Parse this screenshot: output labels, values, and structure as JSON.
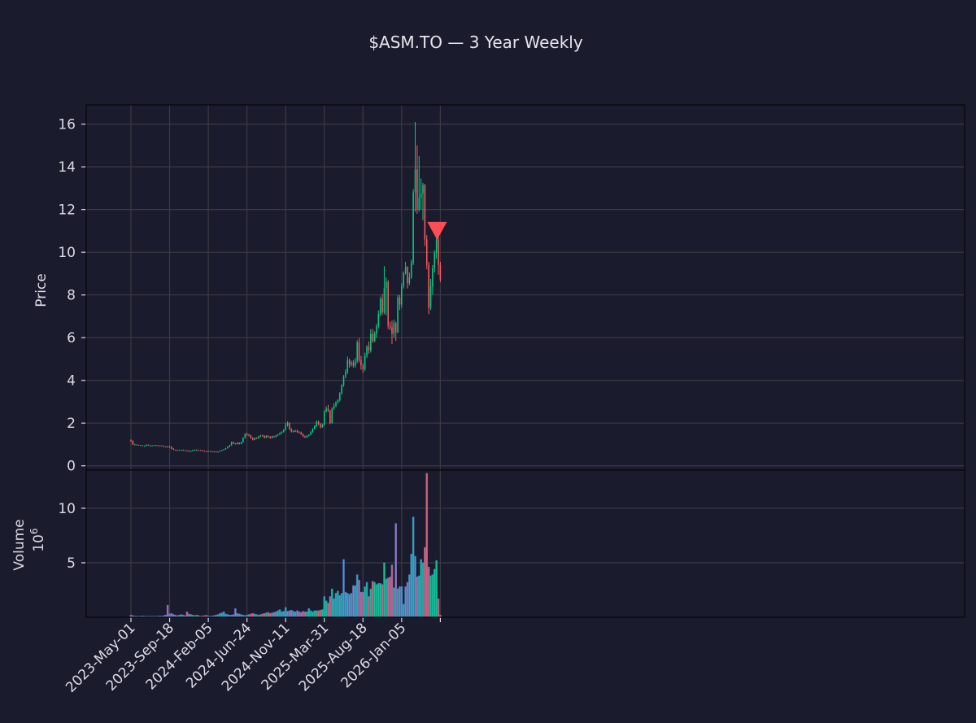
{
  "chart_data": {
    "type": "candlestick",
    "title": "$ASM.TO — 3 Year Weekly",
    "ylabel_price": "Price",
    "ylabel_volume": "Volume",
    "volume_scale_label": "10",
    "volume_scale_exp": "6",
    "x_tick_labels": [
      "2023-May-01",
      "2023-Sep-18",
      "2024-Feb-05",
      "2024-Jun-24",
      "2024-Nov-11",
      "2025-Mar-31",
      "2025-Aug-18",
      "2026-Jan-05"
    ],
    "price_ticks": [
      0,
      2,
      4,
      6,
      8,
      10,
      12,
      14,
      16
    ],
    "volume_ticks": [
      5,
      10
    ],
    "ylim_price": [
      -0.2,
      16.9
    ],
    "ylim_volume": [
      0,
      13.5
    ],
    "grid": true,
    "up_color": "#00d084",
    "down_color": "#ff5a5f",
    "volume_edge_color": "#4f74c8",
    "marker": {
      "type": "sell",
      "shape": "down-triangle",
      "week_index": 160,
      "price": 11.0,
      "color": "#ff4d56"
    },
    "weeks": 161,
    "candles": [
      [
        1.22,
        1.17,
        1.24,
        1.12
      ],
      [
        1.17,
        1.0,
        1.19,
        0.98
      ],
      [
        1.0,
        1.0,
        1.03,
        0.98
      ],
      [
        1.0,
        0.98,
        1.01,
        0.96
      ],
      [
        0.98,
        0.96,
        0.99,
        0.95
      ],
      [
        0.96,
        0.96,
        0.97,
        0.94
      ],
      [
        0.96,
        0.93,
        0.97,
        0.92
      ],
      [
        0.93,
        0.93,
        0.95,
        0.91
      ],
      [
        0.93,
        0.98,
        1.01,
        0.92
      ],
      [
        0.98,
        0.95,
        1.0,
        0.94
      ],
      [
        0.95,
        0.95,
        0.97,
        0.93
      ],
      [
        0.95,
        0.95,
        0.96,
        0.94
      ],
      [
        0.95,
        0.97,
        0.98,
        0.94
      ],
      [
        0.97,
        0.95,
        0.98,
        0.94
      ],
      [
        0.95,
        0.94,
        0.96,
        0.93
      ],
      [
        0.94,
        0.95,
        0.96,
        0.93
      ],
      [
        0.95,
        0.92,
        0.96,
        0.91
      ],
      [
        0.92,
        0.9,
        0.94,
        0.89
      ],
      [
        0.9,
        0.9,
        0.91,
        0.89
      ],
      [
        0.9,
        0.87,
        0.92,
        0.86
      ],
      [
        0.87,
        0.89,
        0.94,
        0.85
      ],
      [
        0.89,
        0.8,
        0.9,
        0.78
      ],
      [
        0.8,
        0.75,
        0.82,
        0.73
      ],
      [
        0.75,
        0.74,
        0.76,
        0.73
      ],
      [
        0.74,
        0.73,
        0.75,
        0.72
      ],
      [
        0.73,
        0.74,
        0.75,
        0.72
      ],
      [
        0.74,
        0.74,
        0.75,
        0.73
      ],
      [
        0.74,
        0.72,
        0.76,
        0.71
      ],
      [
        0.72,
        0.72,
        0.73,
        0.71
      ],
      [
        0.72,
        0.7,
        0.73,
        0.69
      ],
      [
        0.7,
        0.68,
        0.72,
        0.66
      ],
      [
        0.68,
        0.69,
        0.71,
        0.67
      ],
      [
        0.69,
        0.73,
        0.75,
        0.68
      ],
      [
        0.73,
        0.74,
        0.76,
        0.72
      ],
      [
        0.74,
        0.72,
        0.77,
        0.71
      ],
      [
        0.72,
        0.73,
        0.74,
        0.71
      ],
      [
        0.73,
        0.72,
        0.74,
        0.71
      ],
      [
        0.72,
        0.7,
        0.73,
        0.69
      ],
      [
        0.7,
        0.68,
        0.71,
        0.67
      ],
      [
        0.68,
        0.67,
        0.7,
        0.66
      ],
      [
        0.67,
        0.69,
        0.7,
        0.66
      ],
      [
        0.69,
        0.67,
        0.7,
        0.66
      ],
      [
        0.67,
        0.66,
        0.68,
        0.65
      ],
      [
        0.66,
        0.67,
        0.68,
        0.65
      ],
      [
        0.67,
        0.65,
        0.68,
        0.64
      ],
      [
        0.65,
        0.66,
        0.67,
        0.64
      ],
      [
        0.66,
        0.7,
        0.72,
        0.65
      ],
      [
        0.7,
        0.73,
        0.75,
        0.69
      ],
      [
        0.73,
        0.77,
        0.79,
        0.72
      ],
      [
        0.77,
        0.82,
        0.84,
        0.76
      ],
      [
        0.82,
        0.88,
        0.91,
        0.81
      ],
      [
        0.88,
        0.95,
        0.98,
        0.87
      ],
      [
        0.95,
        1.1,
        1.13,
        0.94
      ],
      [
        1.1,
        1.05,
        1.14,
        1.02
      ],
      [
        1.05,
        1.02,
        1.07,
        1.0
      ],
      [
        1.02,
        1.08,
        1.1,
        1.0
      ],
      [
        1.08,
        1.02,
        1.1,
        1.0
      ],
      [
        1.02,
        1.1,
        1.12,
        1.01
      ],
      [
        1.1,
        1.3,
        1.34,
        1.08
      ],
      [
        1.3,
        1.48,
        1.52,
        1.28
      ],
      [
        1.48,
        1.45,
        1.55,
        1.4
      ],
      [
        1.45,
        1.42,
        1.49,
        1.38
      ],
      [
        1.42,
        1.3,
        1.45,
        1.27
      ],
      [
        1.3,
        1.22,
        1.33,
        1.19
      ],
      [
        1.22,
        1.3,
        1.33,
        1.2
      ],
      [
        1.3,
        1.28,
        1.33,
        1.25
      ],
      [
        1.28,
        1.38,
        1.41,
        1.26
      ],
      [
        1.38,
        1.42,
        1.45,
        1.35
      ],
      [
        1.42,
        1.4,
        1.46,
        1.37
      ],
      [
        1.4,
        1.32,
        1.43,
        1.28
      ],
      [
        1.32,
        1.4,
        1.43,
        1.3
      ],
      [
        1.4,
        1.36,
        1.43,
        1.33
      ],
      [
        1.36,
        1.3,
        1.39,
        1.27
      ],
      [
        1.3,
        1.38,
        1.41,
        1.28
      ],
      [
        1.38,
        1.35,
        1.41,
        1.32
      ],
      [
        1.35,
        1.42,
        1.45,
        1.33
      ],
      [
        1.42,
        1.46,
        1.49,
        1.4
      ],
      [
        1.46,
        1.53,
        1.57,
        1.44
      ],
      [
        1.53,
        1.58,
        1.62,
        1.5
      ],
      [
        1.58,
        1.68,
        1.72,
        1.56
      ],
      [
        1.68,
        1.88,
        2.02,
        1.66
      ],
      [
        1.88,
        2.0,
        2.08,
        1.84
      ],
      [
        2.0,
        1.72,
        2.04,
        1.68
      ],
      [
        1.72,
        1.6,
        1.76,
        1.56
      ],
      [
        1.6,
        1.62,
        1.66,
        1.57
      ],
      [
        1.62,
        1.64,
        1.68,
        1.58
      ],
      [
        1.64,
        1.58,
        1.69,
        1.55
      ],
      [
        1.58,
        1.56,
        1.62,
        1.52
      ],
      [
        1.56,
        1.48,
        1.6,
        1.45
      ],
      [
        1.48,
        1.38,
        1.51,
        1.35
      ],
      [
        1.38,
        1.33,
        1.42,
        1.3
      ],
      [
        1.33,
        1.4,
        1.43,
        1.31
      ],
      [
        1.4,
        1.45,
        1.48,
        1.38
      ],
      [
        1.45,
        1.58,
        1.62,
        1.43
      ],
      [
        1.58,
        1.72,
        1.76,
        1.55
      ],
      [
        1.72,
        1.86,
        1.9,
        1.7
      ],
      [
        1.86,
        2.06,
        2.12,
        1.82
      ],
      [
        2.06,
        1.95,
        2.12,
        1.9
      ],
      [
        1.95,
        1.82,
        2.0,
        1.75
      ],
      [
        1.82,
        1.92,
        1.98,
        1.78
      ],
      [
        1.92,
        2.55,
        2.6,
        1.88
      ],
      [
        2.55,
        2.68,
        2.78,
        2.5
      ],
      [
        2.68,
        2.58,
        2.86,
        2.52
      ],
      [
        2.58,
        2.0,
        2.62,
        1.95
      ],
      [
        2.0,
        2.68,
        2.74,
        1.98
      ],
      [
        2.68,
        2.8,
        2.92,
        2.62
      ],
      [
        2.8,
        2.98,
        3.02,
        2.74
      ],
      [
        2.98,
        3.08,
        3.12,
        2.9
      ],
      [
        3.08,
        3.4,
        3.45,
        3.0
      ],
      [
        3.4,
        3.78,
        3.82,
        3.32
      ],
      [
        3.78,
        4.18,
        4.25,
        3.7
      ],
      [
        4.18,
        4.4,
        4.52,
        4.1
      ],
      [
        4.4,
        4.95,
        5.12,
        4.3
      ],
      [
        4.95,
        4.75,
        5.02,
        4.6
      ],
      [
        4.75,
        4.82,
        4.92,
        4.65
      ],
      [
        4.82,
        4.7,
        4.95,
        4.6
      ],
      [
        4.7,
        4.9,
        5.05,
        4.6
      ],
      [
        4.9,
        5.78,
        5.88,
        4.8
      ],
      [
        5.78,
        4.95,
        5.98,
        4.85
      ],
      [
        4.95,
        4.7,
        5.15,
        4.5
      ],
      [
        4.7,
        4.52,
        4.8,
        4.35
      ],
      [
        4.52,
        5.15,
        5.3,
        4.45
      ],
      [
        5.15,
        5.58,
        5.65,
        5.05
      ],
      [
        5.58,
        5.4,
        5.82,
        5.25
      ],
      [
        5.4,
        6.18,
        6.4,
        5.3
      ],
      [
        6.18,
        5.85,
        6.4,
        5.75
      ],
      [
        5.85,
        6.18,
        6.3,
        5.8
      ],
      [
        6.18,
        6.52,
        6.65,
        6.0
      ],
      [
        6.52,
        7.12,
        7.28,
        6.45
      ],
      [
        7.12,
        7.82,
        7.92,
        7.0
      ],
      [
        7.82,
        7.18,
        8.05,
        7.05
      ],
      [
        7.18,
        8.32,
        9.35,
        7.1
      ],
      [
        8.32,
        8.62,
        8.82,
        7.05
      ],
      [
        8.62,
        6.55,
        8.7,
        6.4
      ],
      [
        6.55,
        6.48,
        6.75,
        6.35
      ],
      [
        6.48,
        6.18,
        6.8,
        5.7
      ],
      [
        6.18,
        6.68,
        6.85,
        6.0
      ],
      [
        6.68,
        6.25,
        6.75,
        5.85
      ],
      [
        6.25,
        7.88,
        8.0,
        6.2
      ],
      [
        7.88,
        7.55,
        8.0,
        7.3
      ],
      [
        7.55,
        8.4,
        8.55,
        7.4
      ],
      [
        8.4,
        9.02,
        9.1,
        8.3
      ],
      [
        9.02,
        9.3,
        9.55,
        8.95
      ],
      [
        9.3,
        8.55,
        9.35,
        8.3
      ],
      [
        8.55,
        8.82,
        9.05,
        8.45
      ],
      [
        8.82,
        9.5,
        9.65,
        8.75
      ],
      [
        9.5,
        12.8,
        12.95,
        9.4
      ],
      [
        12.8,
        13.88,
        16.1,
        11.9
      ],
      [
        13.88,
        12.0,
        15.0,
        11.8
      ],
      [
        12.0,
        12.55,
        14.5,
        11.9
      ],
      [
        12.55,
        12.75,
        13.45,
        12.0
      ],
      [
        12.75,
        13.15,
        13.25,
        11.5
      ],
      [
        13.15,
        10.6,
        13.2,
        10.3
      ],
      [
        10.6,
        9.4,
        10.8,
        9.2
      ],
      [
        9.4,
        7.4,
        9.55,
        7.1
      ],
      [
        7.4,
        8.4,
        8.75,
        7.3
      ],
      [
        8.4,
        9.25,
        9.4,
        8.0
      ],
      [
        9.25,
        9.98,
        10.1,
        9.05
      ],
      [
        9.98,
        10.6,
        10.85,
        9.7
      ],
      [
        10.6,
        9.4,
        10.75,
        8.95
      ],
      [
        9.4,
        8.72,
        9.55,
        8.6
      ]
    ],
    "volumes": [
      0.2,
      0.15,
      0.1,
      0.1,
      0.08,
      0.1,
      0.12,
      0.1,
      0.1,
      0.08,
      0.1,
      0.08,
      0.1,
      0.08,
      0.1,
      0.12,
      0.1,
      0.15,
      0.2,
      1.1,
      0.3,
      0.35,
      0.25,
      0.2,
      0.15,
      0.2,
      0.25,
      0.2,
      0.15,
      0.5,
      0.3,
      0.25,
      0.2,
      0.15,
      0.2,
      0.15,
      0.1,
      0.12,
      0.15,
      0.18,
      0.12,
      0.1,
      0.12,
      0.15,
      0.2,
      0.25,
      0.35,
      0.4,
      0.5,
      0.3,
      0.25,
      0.2,
      0.2,
      0.25,
      0.8,
      0.35,
      0.3,
      0.25,
      0.2,
      0.15,
      0.2,
      0.25,
      0.3,
      0.35,
      0.3,
      0.25,
      0.2,
      0.25,
      0.3,
      0.35,
      0.4,
      0.45,
      0.35,
      0.4,
      0.45,
      0.5,
      0.6,
      0.7,
      0.5,
      0.55,
      0.9,
      0.55,
      0.6,
      0.65,
      0.55,
      0.5,
      0.6,
      0.5,
      0.45,
      0.55,
      0.5,
      0.5,
      0.8,
      0.6,
      0.5,
      0.6,
      0.6,
      0.6,
      0.65,
      0.7,
      1.9,
      1.5,
      1.3,
      1.9,
      2.6,
      1.7,
      2.2,
      2.4,
      2.0,
      2.2,
      5.3,
      2.3,
      2.2,
      2.1,
      2.2,
      2.9,
      2.9,
      3.9,
      3.4,
      2.3,
      2.3,
      2.8,
      3.2,
      1.9,
      2.6,
      3.3,
      3.2,
      3.0,
      3.1,
      3.1,
      3.0,
      5.0,
      3.5,
      3.6,
      3.7,
      4.8,
      2.7,
      8.6,
      2.6,
      2.8,
      2.8,
      1.2,
      2.8,
      3.2,
      3.9,
      5.8,
      9.2,
      5.6,
      3.7,
      3.8,
      5.3,
      5.0,
      6.4,
      13.2,
      4.6,
      3.8,
      3.9,
      4.4,
      5.2,
      1.7,
      0.2
    ]
  }
}
